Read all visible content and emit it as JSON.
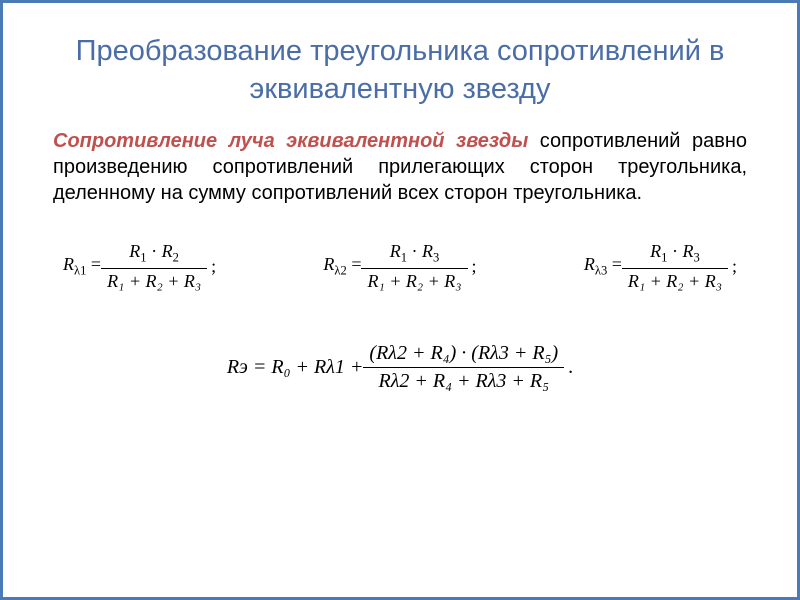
{
  "title_color": "#4a6da7",
  "highlight_color": "#c0504d",
  "border_color": "#4a7bb7",
  "title": "Преобразование треугольника сопротивлений в эквивалентную звезду",
  "highlight_text": "Сопротивление луча эквивалентной звезды",
  "body_text": " сопротивлений равно произведению сопротивлений прилегающих сторон треугольника, деленному на сумму сопротивлений всех сторон треугольника.",
  "formulas": {
    "f1": {
      "lhs": "R",
      "lhs_sub": "λ1",
      "num_a": "R",
      "num_a_sub": "1",
      "num_b": "R",
      "num_b_sub": "2",
      "den": "R₁ + R₂ + R₃"
    },
    "f2": {
      "lhs": "R",
      "lhs_sub": "λ2",
      "num_a": "R",
      "num_a_sub": "1",
      "num_b": "R",
      "num_b_sub": "3",
      "den": "R₁ + R₂ + R₃"
    },
    "f3": {
      "lhs": "R",
      "lhs_sub": "λ3",
      "num_a": "R",
      "num_a_sub": "1",
      "num_b": "R",
      "num_b_sub": "3",
      "den": "R₁ + R₂ + R₃"
    },
    "final": {
      "lhs": "Rэ = R₀ + Rλ1 + ",
      "num": "(Rλ2 + R₄) · (Rλ3 + R₅)",
      "den": "Rλ2 + R₄ + Rλ3 + R₅"
    }
  }
}
